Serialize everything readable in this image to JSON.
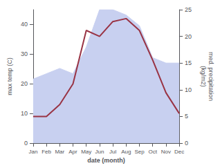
{
  "chart_data": {
    "type": "line",
    "categories": [
      "Jan",
      "Feb",
      "Mar",
      "Apr",
      "May",
      "Jun",
      "Jul",
      "Aug",
      "Sep",
      "Oct",
      "Nov",
      "Dec"
    ],
    "xlabel": "date (month)",
    "ylabel": "max temp (C)",
    "y2label": "med. precipitation\n(kg/m2)",
    "series": [
      {
        "type": "area",
        "axis": "y2",
        "color": "#c8d0f0",
        "values": [
          12,
          13,
          14,
          13,
          18,
          25,
          25,
          24,
          22,
          16,
          15,
          15
        ]
      },
      {
        "type": "line",
        "color": "#993344",
        "values": [
          9,
          9,
          13,
          20,
          38,
          36,
          41,
          42,
          38,
          28,
          17,
          10
        ]
      }
    ],
    "ylim": [
      0,
      45
    ],
    "yticks": [
      0,
      10,
      20,
      30,
      40
    ],
    "y2lim": [
      0,
      25
    ],
    "y2ticks": [
      0,
      5,
      10,
      15,
      20,
      25
    ],
    "grid": false
  }
}
